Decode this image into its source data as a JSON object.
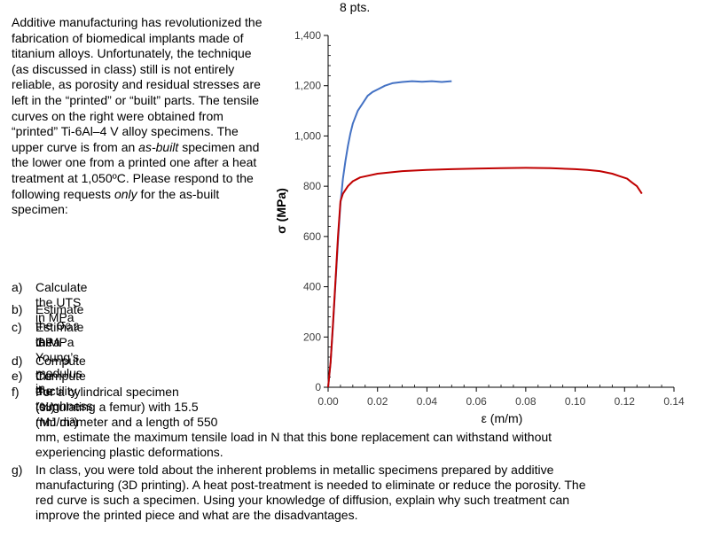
{
  "header": {
    "points": "8 pts."
  },
  "intro": {
    "p1": "Additive manufacturing has revolutionized the fabrication of biomedical implants made of titanium alloys. Unfortunately, the technique (as discussed in class) still is not entirely reliable, as porosity and residual stresses are left in the “printed” or “built” parts. The tensile curves on the right were obtained from “printed” Ti-6Al–4 V alloy specimens. The upper curve is from an ",
    "em1": "as-built",
    "p2": " specimen and the lower one from a printed one after a heat treatment at 1,050ºC. Please respond to the following requests ",
    "em2": "only",
    "p3": " for the as-built specimen:"
  },
  "questions": {
    "a": {
      "label": "a)",
      "text": "Calculate the UTS in MPa"
    },
    "b": {
      "label": "b)",
      "pre": "Estimate the ",
      "sigma": "σ",
      "sub": "0.2",
      "post": " in MPa"
    },
    "c": {
      "label": "c)",
      "line1": "Estimate the Young’s modulus in",
      "line2": "GPa"
    },
    "d": {
      "label": "d)",
      "text": "Compute the ductility (%)"
    },
    "e": {
      "label": "e)",
      "text": "Compute the toughness (MJ/m³)"
    },
    "f": {
      "label": "f)",
      "line1": "For a cylindrical specimen",
      "line2": "(simulating a femur) with 15.5",
      "line3": "mm diameter and a length of 550",
      "line4": "mm, estimate the maximum tensile load in N that this bone replacement can withstand without",
      "line5": "experiencing plastic deformations."
    },
    "g": {
      "label": "g)",
      "line1": "In class, you were told about the inherent problems in metallic specimens prepared by additive",
      "line2": "manufacturing (3D printing). A heat post-treatment is needed to eliminate or reduce the porosity. The",
      "line3": "red curve is such a specimen. Using your knowledge of diffusion, explain why such treatment can",
      "line4": "improve the printed piece and what are the disadvantages."
    }
  },
  "chart_data": {
    "type": "line",
    "xlabel": "ε (m/m)",
    "ylabel": "σ (MPa)",
    "xlim": [
      0,
      0.14
    ],
    "ylim": [
      0,
      1400
    ],
    "x_ticks": [
      "0.00",
      "0.02",
      "0.04",
      "0.06",
      "0.08",
      "0.10",
      "0.12",
      "0.14"
    ],
    "y_ticks": [
      "0",
      "200",
      "400",
      "600",
      "800",
      "1,000",
      "1,200",
      "1,400"
    ],
    "grid": false,
    "legend": "none",
    "series": [
      {
        "color": "#4472c4",
        "points": [
          [
            0,
            0
          ],
          [
            0.001,
            100
          ],
          [
            0.002,
            250
          ],
          [
            0.003,
            420
          ],
          [
            0.004,
            580
          ],
          [
            0.005,
            730
          ],
          [
            0.006,
            830
          ],
          [
            0.007,
            900
          ],
          [
            0.008,
            960
          ],
          [
            0.009,
            1010
          ],
          [
            0.01,
            1050
          ],
          [
            0.012,
            1100
          ],
          [
            0.014,
            1130
          ],
          [
            0.016,
            1160
          ],
          [
            0.018,
            1175
          ],
          [
            0.02,
            1185
          ],
          [
            0.023,
            1200
          ],
          [
            0.026,
            1210
          ],
          [
            0.03,
            1215
          ],
          [
            0.034,
            1218
          ],
          [
            0.038,
            1216
          ],
          [
            0.042,
            1218
          ],
          [
            0.046,
            1215
          ],
          [
            0.05,
            1218
          ]
        ]
      },
      {
        "color": "#c00000",
        "points": [
          [
            0,
            0
          ],
          [
            0.001,
            100
          ],
          [
            0.002,
            260
          ],
          [
            0.003,
            430
          ],
          [
            0.004,
            600
          ],
          [
            0.005,
            740
          ],
          [
            0.006,
            770
          ],
          [
            0.008,
            800
          ],
          [
            0.01,
            820
          ],
          [
            0.013,
            835
          ],
          [
            0.02,
            850
          ],
          [
            0.03,
            860
          ],
          [
            0.04,
            865
          ],
          [
            0.05,
            868
          ],
          [
            0.06,
            870
          ],
          [
            0.07,
            872
          ],
          [
            0.08,
            873
          ],
          [
            0.09,
            872
          ],
          [
            0.1,
            868
          ],
          [
            0.105,
            865
          ],
          [
            0.11,
            860
          ],
          [
            0.115,
            850
          ],
          [
            0.118,
            840
          ],
          [
            0.121,
            830
          ],
          [
            0.123,
            815
          ],
          [
            0.125,
            800
          ],
          [
            0.127,
            770
          ]
        ]
      }
    ]
  }
}
